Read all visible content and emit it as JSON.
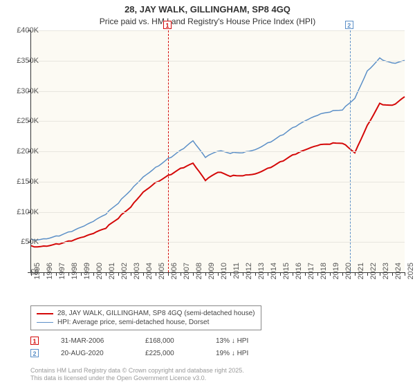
{
  "title": "28, JAY WALK, GILLINGHAM, SP8 4GQ",
  "subtitle": "Price paid vs. HM Land Registry's House Price Index (HPI)",
  "chart": {
    "type": "line",
    "background_color": "#fcfaf3",
    "grid_color": "#e8e6df",
    "axis_color": "#333333",
    "ylim": [
      0,
      400000
    ],
    "ytick_step": 50000,
    "yticks": [
      "£0",
      "£50K",
      "£100K",
      "£150K",
      "£200K",
      "£250K",
      "£300K",
      "£350K",
      "£400K"
    ],
    "xlabels": [
      "1995",
      "1996",
      "1997",
      "1998",
      "1999",
      "2000",
      "2001",
      "2002",
      "2003",
      "2004",
      "2005",
      "2006",
      "2007",
      "2008",
      "2009",
      "2010",
      "2011",
      "2012",
      "2013",
      "2014",
      "2015",
      "2016",
      "2017",
      "2018",
      "2019",
      "2020",
      "2021",
      "2022",
      "2023",
      "2024",
      "2025"
    ],
    "series": [
      {
        "name": "price_paid",
        "label": "28, JAY WALK, GILLINGHAM, SP8 4GQ (semi-detached house)",
        "color": "#d40808",
        "stroke_width": 2,
        "values": [
          44000,
          45000,
          47000,
          50000,
          55000,
          62000,
          72000,
          90000,
          110000,
          135000,
          150000,
          160000,
          170000,
          178000,
          150000,
          165000,
          160000,
          162000,
          165000,
          173000,
          182000,
          192000,
          200000,
          208000,
          212000,
          215000,
          200000,
          245000,
          280000,
          275000,
          288000
        ]
      },
      {
        "name": "hpi",
        "label": "HPI: Average price, semi-detached house, Dorset",
        "color": "#5b8fc7",
        "stroke_width": 1.5,
        "values": [
          55000,
          57000,
          60000,
          65000,
          72000,
          82000,
          95000,
          115000,
          138000,
          160000,
          175000,
          188000,
          200000,
          215000,
          188000,
          200000,
          198000,
          200000,
          205000,
          215000,
          225000,
          237000,
          248000,
          258000,
          265000,
          270000,
          290000,
          335000,
          355000,
          345000,
          348000
        ]
      }
    ],
    "markers": [
      {
        "id": "1",
        "x_index": 11,
        "color": "#d40808"
      },
      {
        "id": "2",
        "x_index": 25.6,
        "color": "#5b8fc7"
      }
    ]
  },
  "legend": {
    "items": [
      {
        "color": "#d40808",
        "thickness": 2,
        "label": "28, JAY WALK, GILLINGHAM, SP8 4GQ (semi-detached house)"
      },
      {
        "color": "#5b8fc7",
        "thickness": 1.5,
        "label": "HPI: Average price, semi-detached house, Dorset"
      }
    ]
  },
  "sales": [
    {
      "id": "1",
      "color": "#d40808",
      "date": "31-MAR-2006",
      "price": "£168,000",
      "diff": "13% ↓ HPI"
    },
    {
      "id": "2",
      "color": "#5b8fc7",
      "date": "20-AUG-2020",
      "price": "£225,000",
      "diff": "19% ↓ HPI"
    }
  ],
  "footer_line1": "Contains HM Land Registry data © Crown copyright and database right 2025.",
  "footer_line2": "This data is licensed under the Open Government Licence v3.0."
}
